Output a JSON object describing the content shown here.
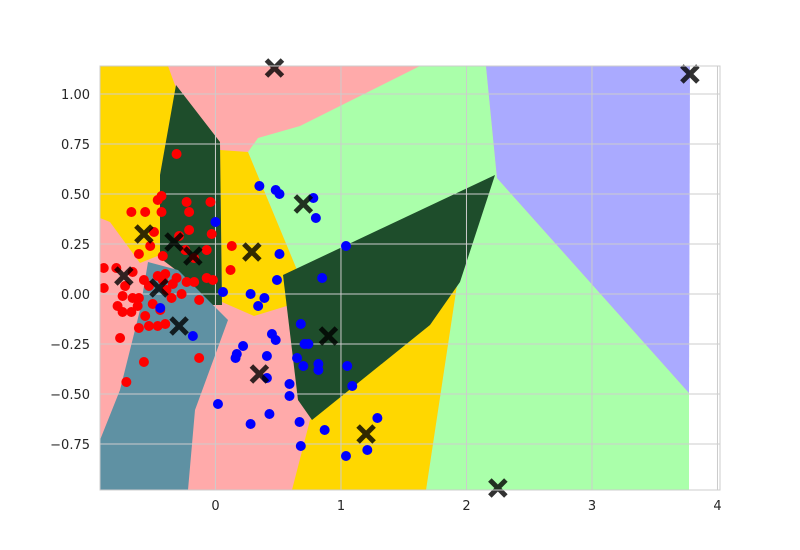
{
  "chart_data": {
    "type": "scatter",
    "title": "",
    "xlabel": "",
    "ylabel": "",
    "xlim": [
      -0.92,
      4.02
    ],
    "ylim": [
      -0.98,
      1.14
    ],
    "xticks": [
      "0",
      "1",
      "2",
      "3",
      "4"
    ],
    "xtick_values": [
      0,
      1,
      2,
      3,
      4
    ],
    "yticks": [
      "1.00",
      "0.75",
      "0.50",
      "0.25",
      "0.00",
      "−0.25",
      "−0.50",
      "−0.75"
    ],
    "ytick_values": [
      1.0,
      0.75,
      0.5,
      0.25,
      0.0,
      -0.25,
      -0.5,
      -0.75
    ],
    "grid": true,
    "legend": "none",
    "background_regions": {
      "description": "decision regions of a nearest-centroid classifier",
      "colors": [
        "#FFD700",
        "#FFAAAA",
        "#AAFFAA",
        "#AAAAFF",
        "#1E4D2B",
        "#5F91A3"
      ]
    },
    "series": [
      {
        "color": "#FF0000",
        "marker": "circle",
        "points": [
          [
            -0.31,
            0.7
          ],
          [
            -0.67,
            0.41
          ],
          [
            -0.56,
            0.41
          ],
          [
            -0.46,
            0.47
          ],
          [
            -0.43,
            0.49
          ],
          [
            -0.23,
            0.46
          ],
          [
            -0.21,
            0.41
          ],
          [
            -0.43,
            0.41
          ],
          [
            -0.04,
            0.46
          ],
          [
            -0.49,
            0.31
          ],
          [
            -0.21,
            0.32
          ],
          [
            -0.29,
            0.29
          ],
          [
            -0.03,
            0.3
          ],
          [
            -0.52,
            0.24
          ],
          [
            0.13,
            0.24
          ],
          [
            -0.61,
            0.2
          ],
          [
            -0.24,
            0.22
          ],
          [
            -0.07,
            0.22
          ],
          [
            -0.42,
            0.19
          ],
          [
            -0.17,
            0.18
          ],
          [
            -0.89,
            0.13
          ],
          [
            -0.79,
            0.13
          ],
          [
            -0.66,
            0.11
          ],
          [
            -0.46,
            0.09
          ],
          [
            -0.4,
            0.1
          ],
          [
            -0.31,
            0.08
          ],
          [
            -0.02,
            0.07
          ],
          [
            0.12,
            0.12
          ],
          [
            -0.57,
            0.07
          ],
          [
            -0.42,
            0.07
          ],
          [
            -0.34,
            0.05
          ],
          [
            -0.23,
            0.06
          ],
          [
            -0.07,
            0.08
          ],
          [
            -0.89,
            0.03
          ],
          [
            -0.72,
            0.04
          ],
          [
            -0.53,
            0.04
          ],
          [
            -0.39,
            0.02
          ],
          [
            -0.27,
            0.0
          ],
          [
            -0.17,
            0.06
          ],
          [
            -0.74,
            -0.01
          ],
          [
            -0.66,
            -0.02
          ],
          [
            -0.61,
            -0.02
          ],
          [
            -0.5,
            -0.05
          ],
          [
            -0.44,
            -0.08
          ],
          [
            -0.35,
            -0.02
          ],
          [
            -0.13,
            -0.03
          ],
          [
            -0.78,
            -0.06
          ],
          [
            -0.74,
            -0.09
          ],
          [
            -0.67,
            -0.09
          ],
          [
            -0.62,
            -0.06
          ],
          [
            -0.56,
            -0.11
          ],
          [
            -0.46,
            -0.16
          ],
          [
            -0.4,
            -0.15
          ],
          [
            -0.61,
            -0.17
          ],
          [
            -0.53,
            -0.16
          ],
          [
            -0.76,
            -0.22
          ],
          [
            -0.57,
            -0.34
          ],
          [
            -0.13,
            -0.32
          ],
          [
            -0.71,
            -0.44
          ]
        ]
      },
      {
        "color": "#0000FF",
        "marker": "circle",
        "points": [
          [
            0.35,
            0.54
          ],
          [
            0.48,
            0.52
          ],
          [
            0.51,
            0.5
          ],
          [
            0.78,
            0.48
          ],
          [
            0.8,
            0.38
          ],
          [
            0.0,
            0.36
          ],
          [
            1.04,
            0.24
          ],
          [
            0.51,
            0.2
          ],
          [
            0.49,
            0.07
          ],
          [
            0.85,
            0.08
          ],
          [
            0.06,
            0.01
          ],
          [
            0.28,
            0.0
          ],
          [
            0.39,
            -0.02
          ],
          [
            0.34,
            -0.06
          ],
          [
            -0.44,
            -0.07
          ],
          [
            -0.18,
            -0.21
          ],
          [
            0.68,
            -0.15
          ],
          [
            0.45,
            -0.2
          ],
          [
            0.48,
            -0.23
          ],
          [
            0.71,
            -0.25
          ],
          [
            0.74,
            -0.25
          ],
          [
            0.22,
            -0.26
          ],
          [
            0.17,
            -0.3
          ],
          [
            0.16,
            -0.32
          ],
          [
            0.41,
            -0.31
          ],
          [
            0.65,
            -0.32
          ],
          [
            0.7,
            -0.36
          ],
          [
            0.82,
            -0.35
          ],
          [
            0.82,
            -0.38
          ],
          [
            1.05,
            -0.36
          ],
          [
            0.41,
            -0.42
          ],
          [
            0.59,
            -0.45
          ],
          [
            1.09,
            -0.46
          ],
          [
            0.59,
            -0.51
          ],
          [
            0.02,
            -0.55
          ],
          [
            0.43,
            -0.6
          ],
          [
            1.29,
            -0.62
          ],
          [
            0.28,
            -0.65
          ],
          [
            0.67,
            -0.64
          ],
          [
            0.87,
            -0.68
          ],
          [
            0.68,
            -0.76
          ],
          [
            1.21,
            -0.78
          ],
          [
            1.04,
            -0.81
          ]
        ]
      },
      {
        "color": "#000000",
        "marker": "x",
        "points": [
          [
            0.47,
            1.13
          ],
          [
            3.78,
            1.1
          ],
          [
            0.7,
            0.45
          ],
          [
            -0.57,
            0.3
          ],
          [
            -0.33,
            0.26
          ],
          [
            0.29,
            0.21
          ],
          [
            -0.18,
            0.19
          ],
          [
            -0.73,
            0.09
          ],
          [
            -0.45,
            0.03
          ],
          [
            -0.29,
            -0.16
          ],
          [
            0.9,
            -0.21
          ],
          [
            0.35,
            -0.4
          ],
          [
            1.2,
            -0.7
          ],
          [
            2.25,
            -0.97
          ]
        ]
      }
    ]
  }
}
